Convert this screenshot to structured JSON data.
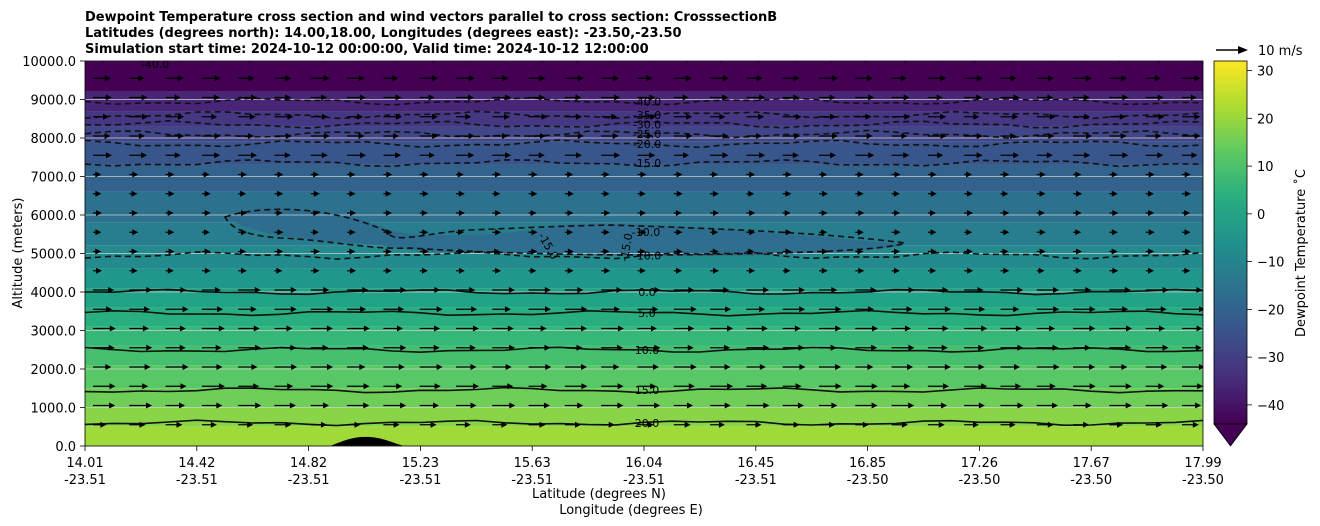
{
  "title_lines": [
    "Dewpoint Temperature cross section and wind vectors parallel to cross section: CrosssectionB",
    "Latitudes (degrees north): 14.00,18.00, Longitudes (degrees east): -23.50,-23.50",
    "Simulation start time: 2024-10-12 00:00:00, Valid time: 2024-10-12 12:00:00"
  ],
  "quiver_key_label": "10 m/s",
  "chart_data": {
    "type": "contour",
    "x_label_lat": "Latitude (degrees N)",
    "x_label_lon": "Longitude (degrees E)",
    "y_label": "Altitude (meters)",
    "colorbar_label": "Dewpoint Temperature ˚C",
    "ylim": [
      0,
      10000
    ],
    "y_ticks": [
      "0.0",
      "1000.0",
      "2000.0",
      "3000.0",
      "4000.0",
      "5000.0",
      "6000.0",
      "7000.0",
      "8000.0",
      "9000.0",
      "10000.0"
    ],
    "y_tick_values": [
      0,
      1000,
      2000,
      3000,
      4000,
      5000,
      6000,
      7000,
      8000,
      9000,
      10000
    ],
    "x_tick_lat": [
      "14.01",
      "14.42",
      "14.82",
      "15.23",
      "15.63",
      "16.04",
      "16.45",
      "16.85",
      "17.26",
      "17.67",
      "17.99"
    ],
    "x_tick_lon": [
      "-23.51",
      "-23.51",
      "-23.51",
      "-23.51",
      "-23.51",
      "-23.51",
      "-23.51",
      "-23.50",
      "-23.50",
      "-23.50",
      "-23.50"
    ],
    "colorbar_range": [
      -44,
      32
    ],
    "colorbar_ticks": [
      "30",
      "20",
      "10",
      "0",
      "−10",
      "−20",
      "−30",
      "−40"
    ],
    "colorbar_tick_values": [
      30,
      20,
      10,
      0,
      -10,
      -20,
      -30,
      -40
    ],
    "grid": "horizontal",
    "contour_levels": [
      {
        "label": "-40.0",
        "value": -40,
        "approx_altitude_m": 8950
      },
      {
        "label": "-35.0",
        "value": -35,
        "approx_altitude_m": 8600
      },
      {
        "label": "-30.0",
        "value": -30,
        "approx_altitude_m": 8350
      },
      {
        "label": "-25.0",
        "value": -25,
        "approx_altitude_m": 8100
      },
      {
        "label": "-20.0",
        "value": -20,
        "approx_altitude_m": 7850
      },
      {
        "label": "-15.0",
        "value": -15,
        "approx_altitude_m": 7350
      },
      {
        "label": "-10.0",
        "value": -10,
        "approx_altitude_m": 4950
      },
      {
        "label": "0.0",
        "value": 0,
        "approx_altitude_m": 4000
      },
      {
        "label": "5.0",
        "value": 5,
        "approx_altitude_m": 3450
      },
      {
        "label": "10.0",
        "value": 10,
        "approx_altitude_m": 2500
      },
      {
        "label": "15.0",
        "value": 15,
        "approx_altitude_m": 1450
      },
      {
        "label": "20.0",
        "value": 20,
        "approx_altitude_m": 600
      }
    ],
    "extra_contour_labels": [
      "-10.0",
      "-15.0",
      "-15.0",
      "-40.0"
    ]
  }
}
